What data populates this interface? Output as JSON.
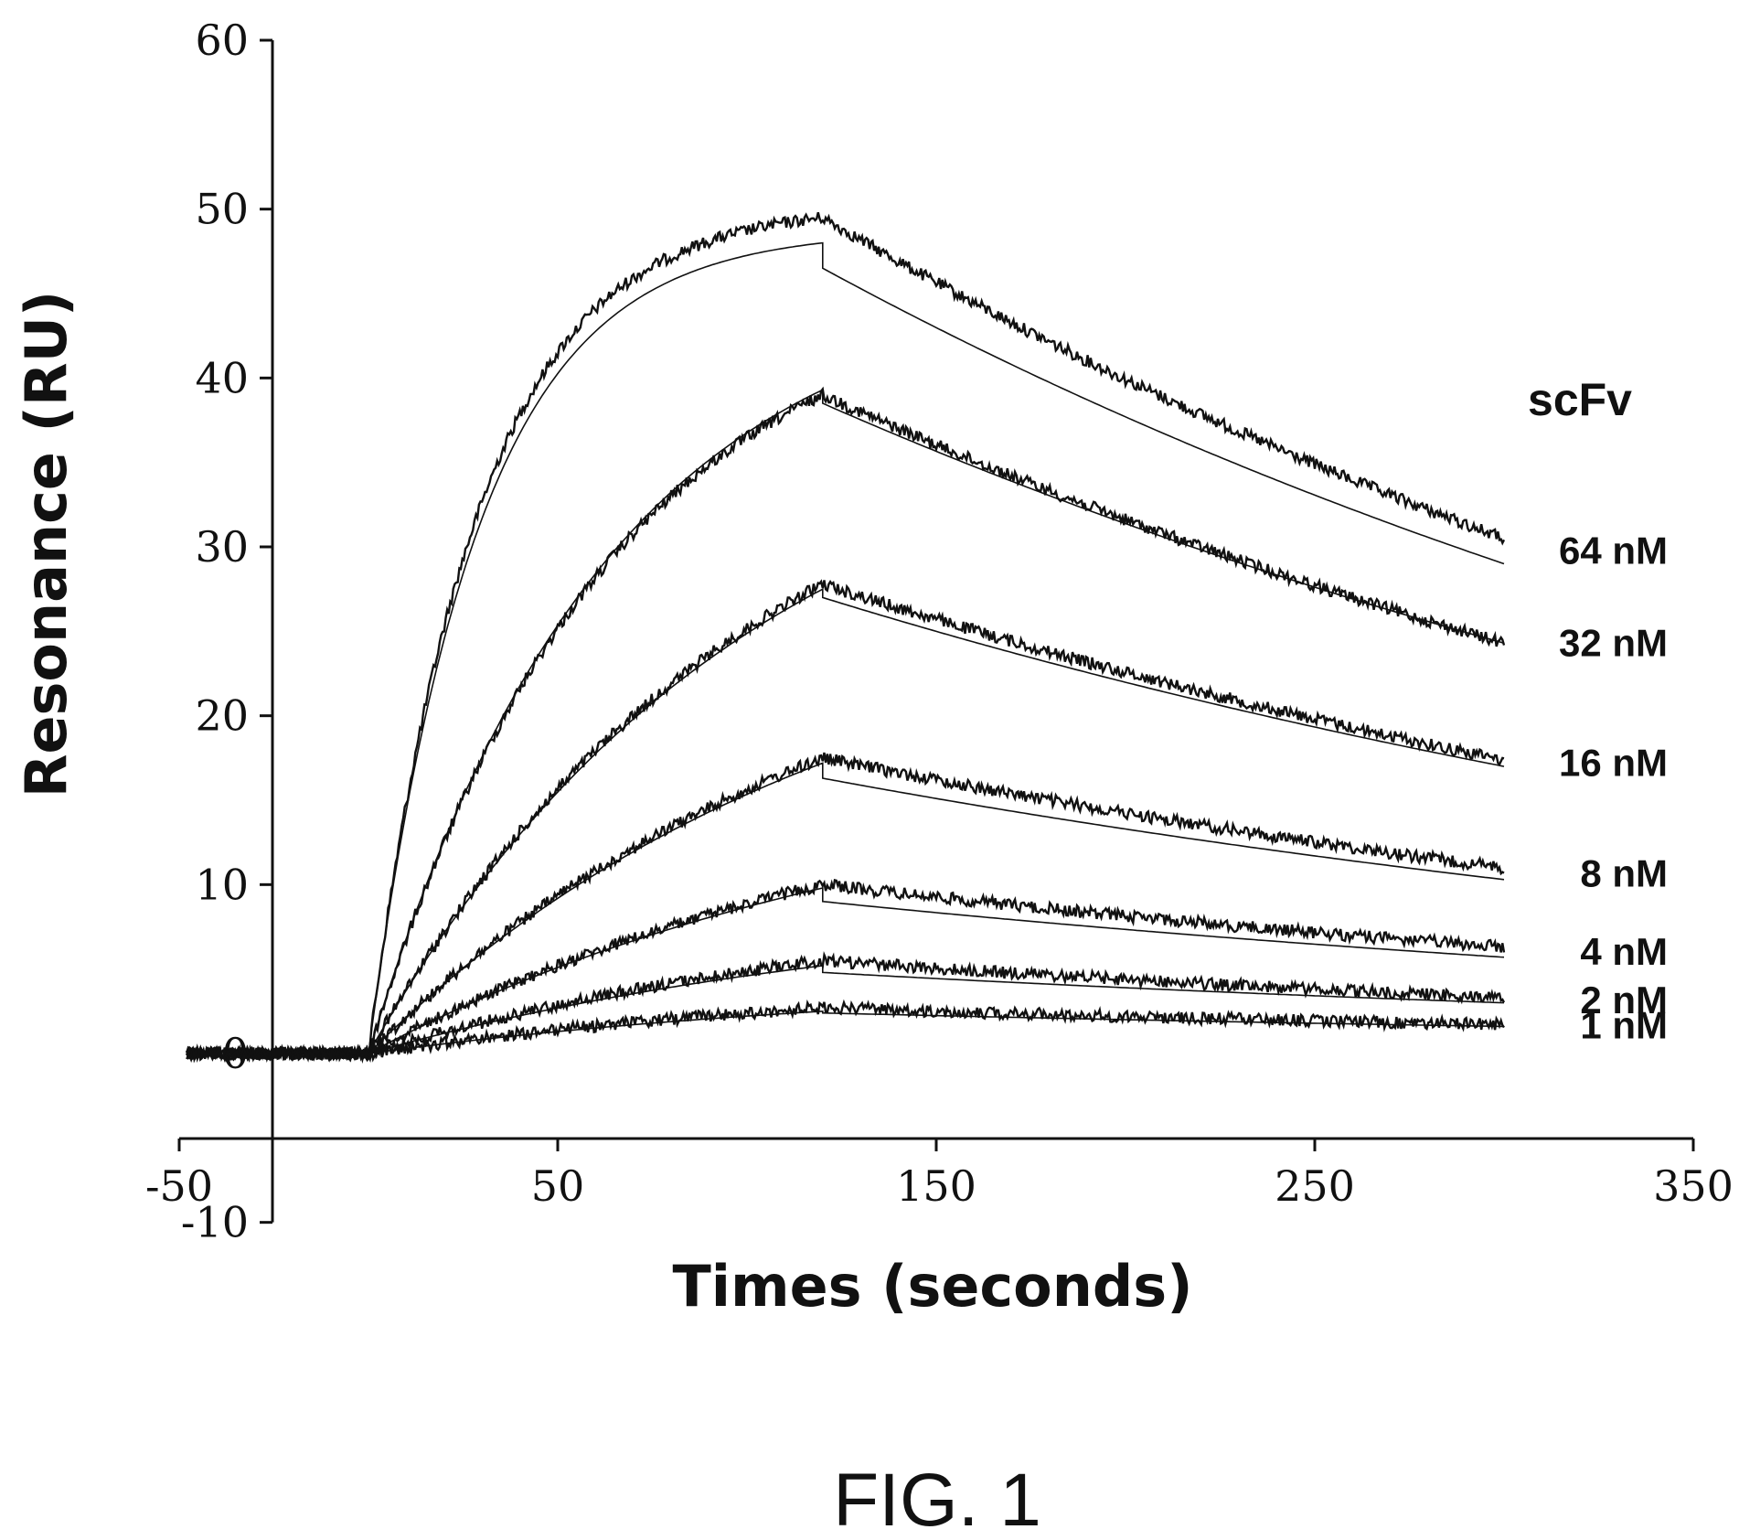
{
  "chart_data": {
    "type": "line",
    "title": "",
    "xlabel": "Times (seconds)",
    "ylabel": "Resonance (RU)",
    "xlim": [
      -50,
      350
    ],
    "ylim": [
      -10,
      60
    ],
    "x_ticks": [
      "-50",
      "50",
      "150",
      "250",
      "350"
    ],
    "y_ticks": [
      "-10",
      "0",
      "10",
      "20",
      "30",
      "40",
      "50",
      "60"
    ],
    "legend_title": "scFv",
    "association_start": 0,
    "dissociation_start": 120,
    "end_time": 300,
    "series": [
      {
        "name": "64 nM",
        "observed_peak": 49.5,
        "fit_peak": 48.0,
        "fit_dissoc_start": 46.5,
        "observed_end": 30.5,
        "fit_end": 29.0,
        "rise_shape": 0.035
      },
      {
        "name": "32 nM",
        "observed_peak": 39.0,
        "fit_peak": 39.3,
        "fit_dissoc_start": 38.5,
        "observed_end": 24.3,
        "fit_end": 24.3,
        "rise_shape": 0.016
      },
      {
        "name": "16 nM",
        "observed_peak": 27.8,
        "fit_peak": 27.5,
        "fit_dissoc_start": 27.0,
        "observed_end": 17.4,
        "fit_end": 17.0,
        "rise_shape": 0.01
      },
      {
        "name": "8 nM",
        "observed_peak": 17.5,
        "fit_peak": 17.2,
        "fit_dissoc_start": 16.3,
        "observed_end": 11.0,
        "fit_end": 10.3,
        "rise_shape": 0.008
      },
      {
        "name": "4 nM",
        "observed_peak": 10.0,
        "fit_peak": 9.8,
        "fit_dissoc_start": 9.0,
        "observed_end": 6.3,
        "fit_end": 5.7,
        "rise_shape": 0.007
      },
      {
        "name": "2 nM",
        "observed_peak": 5.5,
        "fit_peak": 5.2,
        "fit_dissoc_start": 4.8,
        "observed_end": 3.3,
        "fit_end": 3.0,
        "rise_shape": 0.007
      },
      {
        "name": "1 nM",
        "observed_peak": 2.7,
        "fit_peak": 2.5,
        "fit_dissoc_start": 2.4,
        "observed_end": 1.7,
        "fit_end": 1.6,
        "rise_shape": 0.007
      }
    ],
    "grid": false,
    "legend_placement": "right"
  },
  "caption": "FIG. 1",
  "colors": {
    "line": "#111111",
    "background": "#ffffff"
  }
}
